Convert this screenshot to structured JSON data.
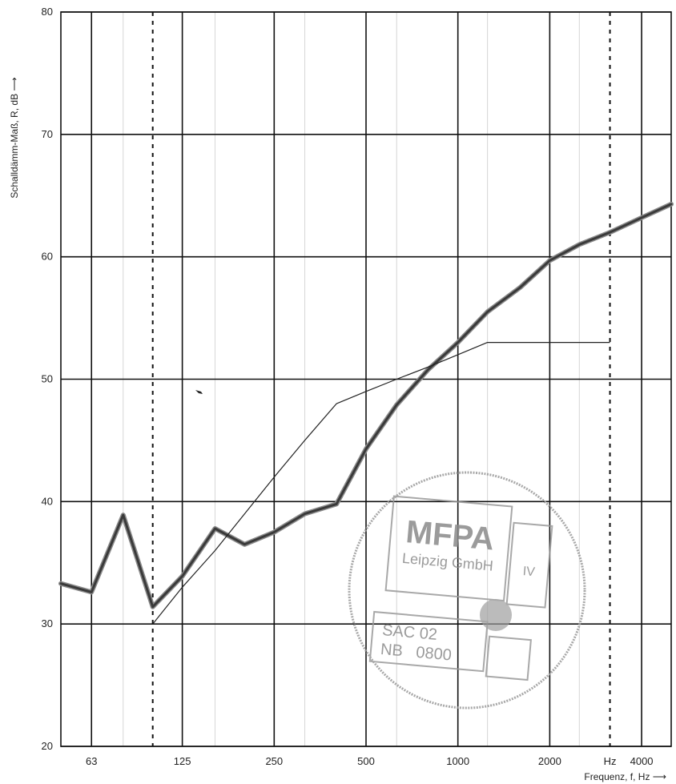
{
  "chart_data": {
    "type": "line",
    "title": "",
    "xlabel": "Frequenz, f, Hz ⟶",
    "ylabel": "Schalldämm-Maß, R, dB ⟶",
    "x_scale": "log",
    "xlim": [
      50,
      5000
    ],
    "ylim": [
      20,
      80
    ],
    "grid": true,
    "x_ticks": [
      {
        "value": 63,
        "label": "63"
      },
      {
        "value": 125,
        "label": "125"
      },
      {
        "value": 250,
        "label": "250"
      },
      {
        "value": 500,
        "label": "500"
      },
      {
        "value": 1000,
        "label": "1000"
      },
      {
        "value": 2000,
        "label": "2000"
      },
      {
        "value": 3150,
        "label": "Hz"
      },
      {
        "value": 4000,
        "label": "4000"
      }
    ],
    "y_ticks": [
      20,
      30,
      40,
      50,
      60,
      70,
      80
    ],
    "x_gridlines": [
      63,
      125,
      250,
      500,
      1000,
      2000,
      4000
    ],
    "minor_x_gridlines": [
      80,
      160,
      315,
      630,
      1250,
      2500
    ],
    "dotted_x_gridlines": [
      100,
      3150
    ],
    "series": [
      {
        "style": "thick",
        "color": "#3a3a3a",
        "x": [
          50,
          63,
          80,
          100,
          125,
          160,
          200,
          250,
          315,
          400,
          500,
          630,
          800,
          1000,
          1250,
          1600,
          2000,
          2500,
          3150,
          4000,
          5000
        ],
        "y": [
          33.3,
          32.6,
          38.9,
          31.4,
          33.9,
          37.8,
          36.5,
          37.5,
          39.0,
          39.8,
          44.3,
          47.9,
          50.8,
          53.0,
          55.5,
          57.5,
          59.7,
          61.0,
          62.0,
          63.2,
          64.3
        ]
      },
      {
        "style": "thin",
        "color": "#222222",
        "x": [
          100,
          125,
          160,
          200,
          250,
          315,
          400,
          500,
          630,
          800,
          1000,
          1250,
          1600,
          2000,
          2500,
          3150
        ],
        "y": [
          30,
          33,
          36,
          39,
          42,
          45,
          48,
          49,
          50,
          51,
          52,
          53,
          53,
          53,
          53,
          53
        ]
      }
    ]
  },
  "stamp": {
    "logo": "MFPA",
    "company": "Leipzig GmbH",
    "roman": "IV",
    "code1": "SAC 02",
    "code2": "NB   0800"
  },
  "annotations": {
    "arrow": "⟶"
  }
}
